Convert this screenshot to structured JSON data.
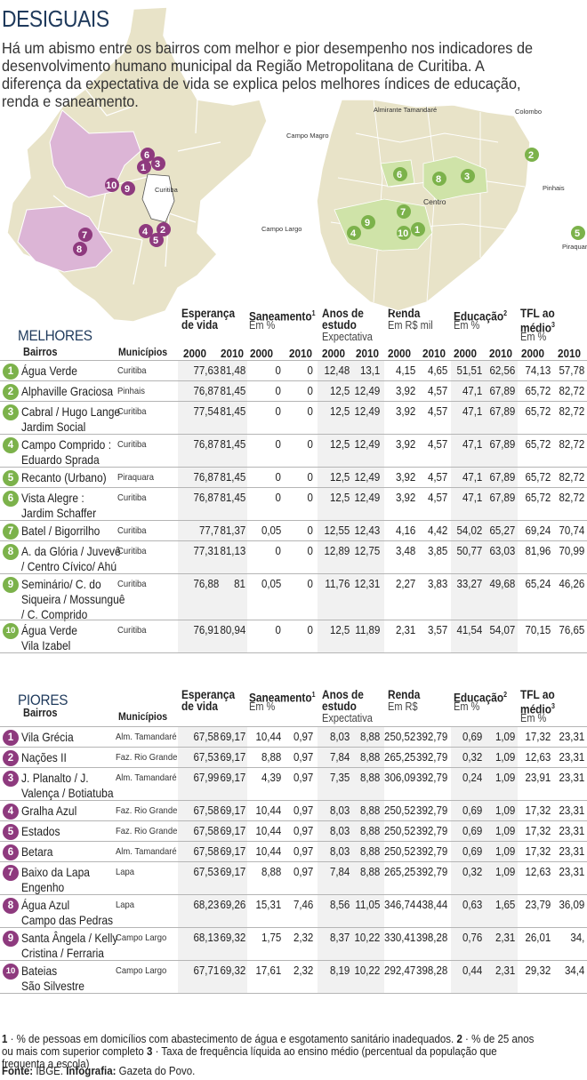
{
  "title": "DESIGUAIS",
  "intro": "Há um abismo entre os bairros com melhor e pior desempenho nos indicadores de desenvolvimento humano municipal da Região Metropolitana de Curitiba. A diferença da expectativa de vida se explica pelos melhores índices de educação, renda e saneamento.",
  "colors": {
    "best": "#7cb24b",
    "worst": "#8e3a7e",
    "heading": "#1f3a5c"
  },
  "map_labels": {
    "curitiba": "Curitiba",
    "almirante": "Almirante Tamandaré",
    "colombo": "Colombo",
    "campo_magro": "Campo Magro",
    "pinhais": "Pinhais",
    "centro": "Centro",
    "campo_largo": "Campo Largo",
    "piraquara": "Piraquara"
  },
  "columns": {
    "bairros": "Bairros",
    "municipios": "Municípios",
    "esperanca": "Esperança de vida",
    "saneamento": "Saneamento",
    "saneamento_sup": "1",
    "saneamento_unit": "Em %",
    "anos": "Anos de estudo",
    "anos_unit": "Expectativa",
    "renda": "Renda",
    "renda_unit_best": "Em R$ mil",
    "renda_unit_worst": "Em R$",
    "educacao": "Educação",
    "educacao_sup": "2",
    "educacao_unit": "Em %",
    "tfl": "TFL ao médio",
    "tfl_sup": "3",
    "tfl_unit": "Em %",
    "y2000": "2000",
    "y2010": "2010"
  },
  "best": {
    "title": "MELHORES",
    "rows": [
      {
        "n": "1",
        "name": "Água Verde",
        "mun": "Curitiba",
        "v": [
          "77,63",
          "81,48",
          "0",
          "0",
          "12,48",
          "13,1",
          "4,15",
          "4,65",
          "51,51",
          "62,56",
          "74,13",
          "57,78"
        ]
      },
      {
        "n": "2",
        "name": "Alphaville Graciosa",
        "mun": "Pinhais",
        "v": [
          "76,87",
          "81,45",
          "0",
          "0",
          "12,5",
          "12,49",
          "3,92",
          "4,57",
          "47,1",
          "67,89",
          "65,72",
          "82,72"
        ]
      },
      {
        "n": "3",
        "name": "Cabral / Hugo Lange\nJardim Social",
        "mun": "Curitiba",
        "v": [
          "77,54",
          "81,45",
          "0",
          "0",
          "12,5",
          "12,49",
          "3,92",
          "4,57",
          "47,1",
          "67,89",
          "65,72",
          "82,72"
        ]
      },
      {
        "n": "4",
        "name": "Campo Comprido :\nEduardo Sprada",
        "mun": "Curitiba",
        "v": [
          "76,87",
          "81,45",
          "0",
          "0",
          "12,5",
          "12,49",
          "3,92",
          "4,57",
          "47,1",
          "67,89",
          "65,72",
          "82,72"
        ]
      },
      {
        "n": "5",
        "name": "Recanto (Urbano)",
        "mun": "Piraquara",
        "v": [
          "76,87",
          "81,45",
          "0",
          "0",
          "12,5",
          "12,49",
          "3,92",
          "4,57",
          "47,1",
          "67,89",
          "65,72",
          "82,72"
        ]
      },
      {
        "n": "6",
        "name": "Vista Alegre :\nJardim Schaffer",
        "mun": "Curitiba",
        "v": [
          "76,87",
          "81,45",
          "0",
          "0",
          "12,5",
          "12,49",
          "3,92",
          "4,57",
          "47,1",
          "67,89",
          "65,72",
          "82,72"
        ]
      },
      {
        "n": "7",
        "name": "Batel / Bigorrilho",
        "mun": "Curitiba",
        "v": [
          "77,7",
          "81,37",
          "0,05",
          "0",
          "12,55",
          "12,43",
          "4,16",
          "4,42",
          "54,02",
          "65,27",
          "69,24",
          "70,74"
        ]
      },
      {
        "n": "8",
        "name": "A. da Glória / Juvevê\n/ Centro Cívico/ Ahú",
        "mun": "Curitiba",
        "v": [
          "77,31",
          "81,13",
          "0",
          "0",
          "12,89",
          "12,75",
          "3,48",
          "3,85",
          "50,77",
          "63,03",
          "81,96",
          "70,99"
        ]
      },
      {
        "n": "9",
        "name": "Seminário/ C. do\nSiqueira / Mossunguê\n/ C. Comprido",
        "mun": "Curitiba",
        "v": [
          "76,88",
          "81",
          "0,05",
          "0",
          "11,76",
          "12,31",
          "2,27",
          "3,83",
          "33,27",
          "49,68",
          "65,24",
          "46,26"
        ]
      },
      {
        "n": "10",
        "name": "Água Verde\nVila Izabel",
        "mun": "Curitiba",
        "v": [
          "76,91",
          "80,94",
          "0",
          "0",
          "12,5",
          "11,89",
          "2,31",
          "3,57",
          "41,54",
          "54,07",
          "70,15",
          "76,65"
        ]
      }
    ]
  },
  "worst": {
    "title": "PIORES",
    "rows": [
      {
        "n": "1",
        "name": "Vila Grécia",
        "mun": "Alm. Tamandaré",
        "v": [
          "67,58",
          "69,17",
          "10,44",
          "0,97",
          "8,03",
          "8,88",
          "250,52",
          "392,79",
          "0,69",
          "1,09",
          "17,32",
          "23,31"
        ]
      },
      {
        "n": "2",
        "name": "Nações II",
        "mun": "Faz. Rio Grande",
        "v": [
          "67,53",
          "69,17",
          "8,88",
          "0,97",
          "7,84",
          "8,88",
          "265,25",
          "392,79",
          "0,32",
          "1,09",
          "12,63",
          "23,31"
        ]
      },
      {
        "n": "3",
        "name": "J. Planalto / J.\nValença / Botiatuba",
        "mun": "Alm. Tamandaré",
        "v": [
          "67,99",
          "69,17",
          "4,39",
          "0,97",
          "7,35",
          "8,88",
          "306,09",
          "392,79",
          "0,24",
          "1,09",
          "23,91",
          "23,31"
        ]
      },
      {
        "n": "4",
        "name": "Gralha Azul",
        "mun": "Faz. Rio Grande",
        "v": [
          "67,58",
          "69,17",
          "10,44",
          "0,97",
          "8,03",
          "8,88",
          "250,52",
          "392,79",
          "0,69",
          "1,09",
          "17,32",
          "23,31"
        ]
      },
      {
        "n": "5",
        "name": "Estados",
        "mun": "Faz. Rio Grande",
        "v": [
          "67,58",
          "69,17",
          "10,44",
          "0,97",
          "8,03",
          "8,88",
          "250,52",
          "392,79",
          "0,69",
          "1,09",
          "17,32",
          "23,31"
        ]
      },
      {
        "n": "6",
        "name": "Betara",
        "mun": "Alm. Tamandaré",
        "v": [
          "67,58",
          "69,17",
          "10,44",
          "0,97",
          "8,03",
          "8,88",
          "250,52",
          "392,79",
          "0,69",
          "1,09",
          "17,32",
          "23,31"
        ]
      },
      {
        "n": "7",
        "name": "Baixo da Lapa\nEngenho",
        "mun": "Lapa",
        "v": [
          "67,53",
          "69,17",
          "8,88",
          "0,97",
          "7,84",
          "8,88",
          "265,25",
          "392,79",
          "0,32",
          "1,09",
          "12,63",
          "23,31"
        ]
      },
      {
        "n": "8",
        "name": "Água Azul\nCampo das Pedras",
        "mun": "Lapa",
        "v": [
          "68,23",
          "69,26",
          "15,31",
          "7,46",
          "8,56",
          "11,05",
          "346,74",
          "438,44",
          "0,63",
          "1,65",
          "23,79",
          "36,09"
        ]
      },
      {
        "n": "9",
        "name": "Santa Ângela / Kelly\nCristina / Ferraria",
        "mun": "Campo Largo",
        "v": [
          "68,13",
          "69,32",
          "1,75",
          "2,32",
          "8,37",
          "10,22",
          "330,41",
          "398,28",
          "0,76",
          "2,31",
          "26,01",
          "34,"
        ]
      },
      {
        "n": "10",
        "name": "Bateias\nSão Silvestre",
        "mun": "Campo Largo",
        "v": [
          "67,71",
          "69,32",
          "17,61",
          "2,32",
          "8,19",
          "10,22",
          "292,47",
          "398,28",
          "0,44",
          "2,31",
          "29,32",
          "34,4"
        ]
      }
    ]
  },
  "footnotes": {
    "f1_num": "1",
    "f1": "· % de pessoas em domicílios com abastecimento de água e esgotamento sanitário inadequados.",
    "f2_num": "2",
    "f2": "· % de 25 anos ou mais com superior completo",
    "f3_num": "3",
    "f3": "· Taxa de frequência líquida ao ensino médio (percentual da população que frequenta a escola)",
    "source_label": "Fonte:",
    "source": "IBGE.",
    "infographic_label": "Infografia:",
    "infographic": "Gazeta do Povo."
  }
}
